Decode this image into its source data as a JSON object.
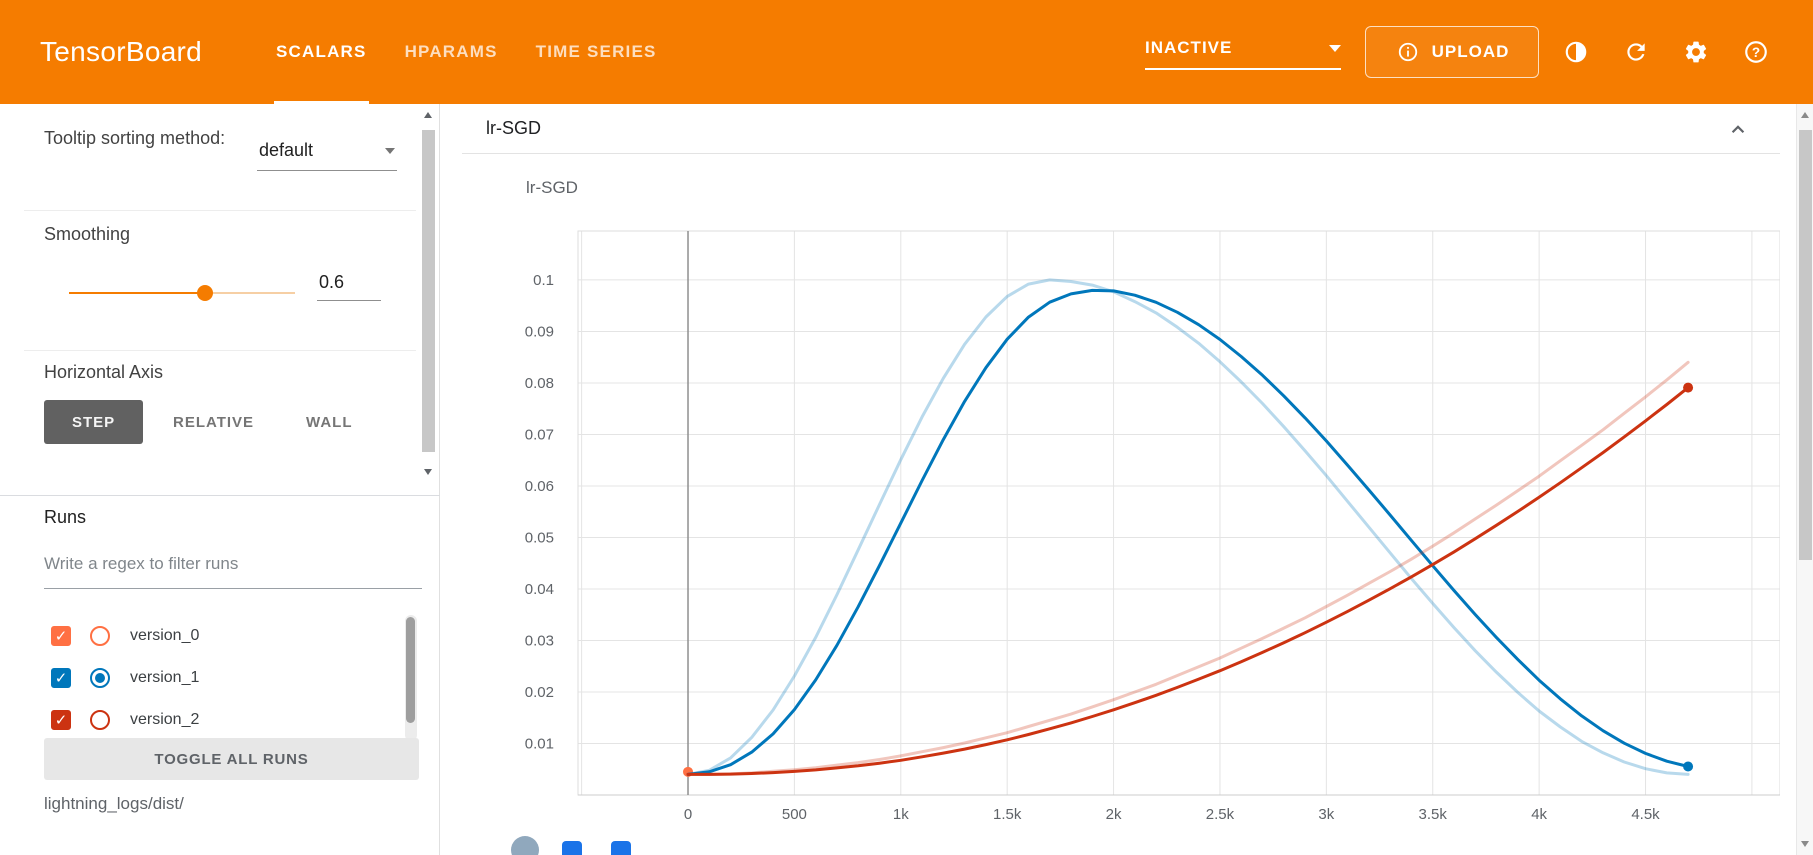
{
  "ui": {
    "check_glyph": "✓",
    "help_glyph": "?"
  },
  "colors": {
    "accent": "#f57c00"
  },
  "header": {
    "logo": "TensorBoard",
    "tabs": [
      {
        "label": "SCALARS",
        "active": true
      },
      {
        "label": "HPARAMS",
        "active": false
      },
      {
        "label": "TIME SERIES",
        "active": false
      }
    ],
    "status": {
      "label": "INACTIVE"
    },
    "upload": {
      "label": "UPLOAD"
    }
  },
  "sidebar": {
    "tooltip_sorting": {
      "label": "Tooltip sorting method:",
      "value": "default"
    },
    "smoothing": {
      "label": "Smoothing",
      "value": "0.6",
      "percent": 60
    },
    "horizontal_axis": {
      "label": "Horizontal Axis",
      "options": [
        {
          "label": "STEP",
          "active": true
        },
        {
          "label": "RELATIVE",
          "active": false
        },
        {
          "label": "WALL",
          "active": false
        }
      ]
    },
    "runs": {
      "label": "Runs",
      "filter_placeholder": "Write a regex to filter runs",
      "toggle_all_label": "TOGGLE ALL RUNS",
      "log_dir": "lightning_logs/dist/",
      "items": [
        {
          "name": "version_0",
          "color": "#ff7043",
          "checked": true,
          "selected": false
        },
        {
          "name": "version_1",
          "color": "#0077bb",
          "checked": true,
          "selected": true
        },
        {
          "name": "version_2",
          "color": "#cc3311",
          "checked": true,
          "selected": false
        }
      ]
    }
  },
  "main": {
    "card_title": "lr-SGD"
  },
  "chart_data": {
    "type": "line",
    "title": "lr-SGD",
    "grid": true,
    "legend": "none",
    "smoothing": 0.6,
    "x_axis": {
      "range": [
        -517,
        5132
      ],
      "ticks": [
        0,
        500,
        1000,
        1500,
        2000,
        2500,
        3000,
        3500,
        4000,
        4500
      ],
      "tick_labels": [
        "0",
        "500",
        "1k",
        "1.5k",
        "2k",
        "2.5k",
        "3k",
        "3.5k",
        "4k",
        "4.5k"
      ]
    },
    "y_axis": {
      "range": [
        0,
        0.1095
      ],
      "ticks": [
        0.01,
        0.02,
        0.03,
        0.04,
        0.05,
        0.06,
        0.07,
        0.08,
        0.09,
        0.1
      ],
      "tick_labels": [
        "0.01",
        "0.02",
        "0.03",
        "0.04",
        "0.05",
        "0.06",
        "0.07",
        "0.08",
        "0.09",
        "0.1"
      ]
    },
    "x": [
      0,
      100,
      200,
      300,
      400,
      500,
      600,
      700,
      800,
      900,
      1000,
      1100,
      1200,
      1300,
      1400,
      1500,
      1600,
      1700,
      1800,
      1900,
      2000,
      2100,
      2200,
      2300,
      2400,
      2500,
      2600,
      2700,
      2800,
      2900,
      3000,
      3100,
      3200,
      3300,
      3400,
      3500,
      3600,
      3700,
      3800,
      3900,
      4000,
      4100,
      4200,
      4300,
      4400,
      4500,
      4600,
      4700
    ],
    "series": [
      {
        "name": "version_0",
        "color": "#ff7043",
        "x": [
          0
        ],
        "y": [
          0.0045
        ]
      },
      {
        "name": "version_1",
        "color": "#0077bb",
        "y": [
          0.004,
          0.0048,
          0.0072,
          0.0112,
          0.0165,
          0.0231,
          0.0306,
          0.0389,
          0.0476,
          0.0564,
          0.0651,
          0.0734,
          0.0809,
          0.0875,
          0.0928,
          0.0968,
          0.0992,
          0.1,
          0.0997,
          0.099,
          0.0977,
          0.0958,
          0.0936,
          0.0908,
          0.0877,
          0.0841,
          0.0802,
          0.076,
          0.0715,
          0.0668,
          0.062,
          0.057,
          0.052,
          0.047,
          0.042,
          0.0372,
          0.0325,
          0.028,
          0.0238,
          0.0199,
          0.0163,
          0.0132,
          0.0104,
          0.0082,
          0.0064,
          0.0051,
          0.0043,
          0.004
        ]
      },
      {
        "name": "version_2",
        "color": "#cc3311",
        "y": [
          0.004,
          0.004,
          0.0041,
          0.0043,
          0.0046,
          0.0049,
          0.0053,
          0.0058,
          0.0063,
          0.0069,
          0.0076,
          0.0084,
          0.0092,
          0.0101,
          0.0111,
          0.0121,
          0.0133,
          0.0145,
          0.0157,
          0.0171,
          0.0185,
          0.02,
          0.0215,
          0.0232,
          0.0249,
          0.0266,
          0.0285,
          0.0304,
          0.0324,
          0.0344,
          0.0366,
          0.0388,
          0.0411,
          0.0434,
          0.0458,
          0.0483,
          0.0509,
          0.0536,
          0.0563,
          0.0591,
          0.0619,
          0.0649,
          0.0679,
          0.0709,
          0.0741,
          0.0773,
          0.0806,
          0.084
        ]
      }
    ]
  }
}
